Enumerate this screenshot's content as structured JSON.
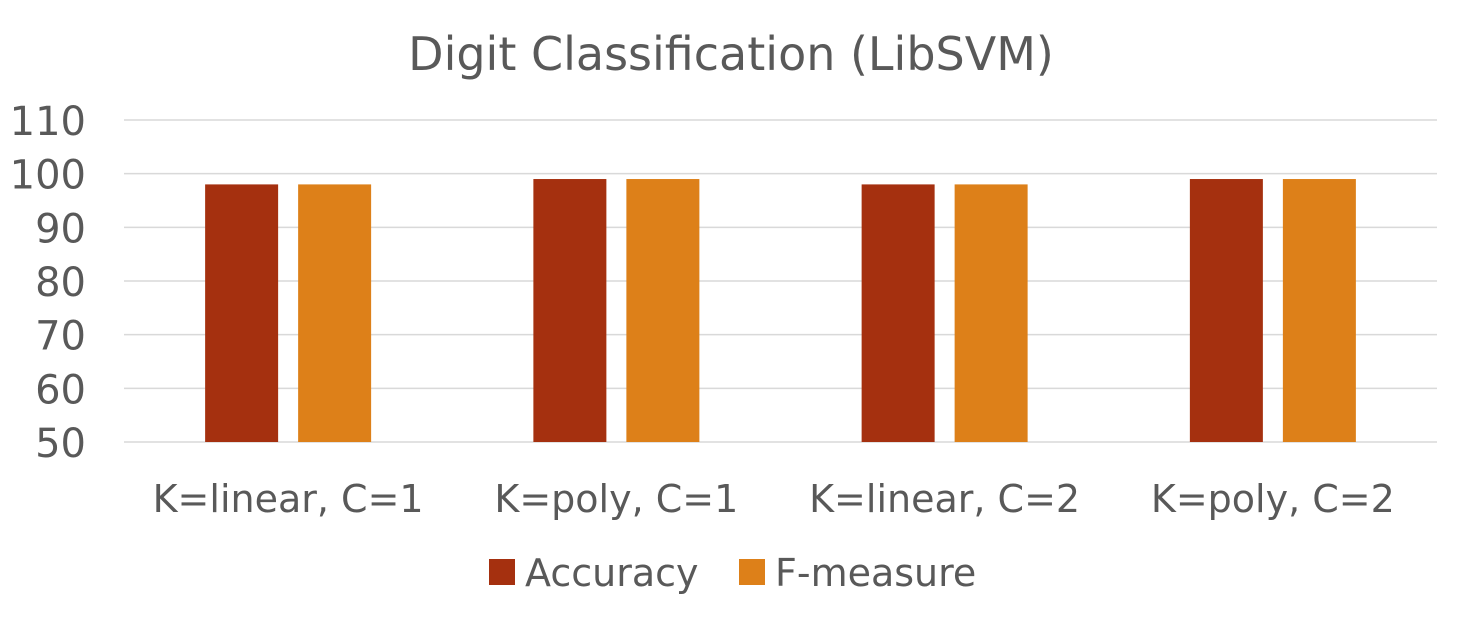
{
  "chart_data": {
    "type": "bar",
    "title": "Digit Classification (LibSVM)",
    "xlabel": "",
    "ylabel": "",
    "categories": [
      "K=linear, C=1",
      "K=poly, C=1",
      "K=linear, C=2",
      "K=poly, C=2"
    ],
    "series": [
      {
        "name": "Accuracy",
        "values": [
          98,
          99,
          98,
          99
        ],
        "color": "#a5300f"
      },
      {
        "name": "F-measure",
        "values": [
          98,
          99,
          98,
          99
        ],
        "color": "#dd8019"
      }
    ],
    "ylim": [
      50,
      110
    ],
    "yticks": [
      50,
      60,
      70,
      80,
      90,
      100,
      110
    ],
    "grid": true,
    "gridColor": "#d9d9d9",
    "legend": "bottom"
  }
}
